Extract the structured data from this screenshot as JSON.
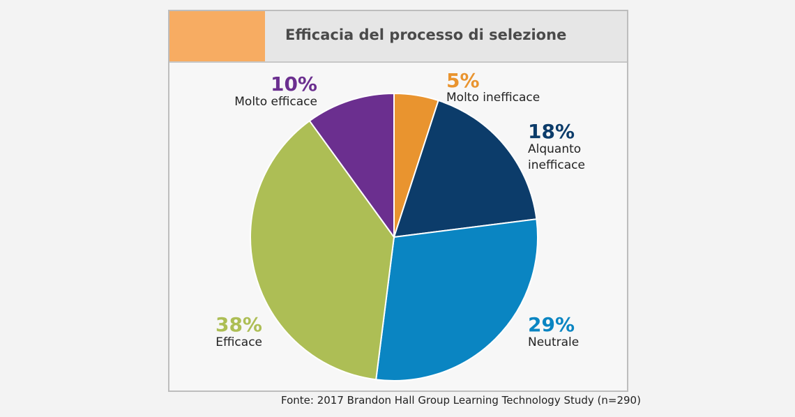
{
  "header": {
    "title": "Efficacia del processo di selezione",
    "accent_color": "#f7ac62"
  },
  "source": "Fonte: 2017 Brandon Hall Group Learning Technology Study (n=290)",
  "chart_data": {
    "type": "pie",
    "title": "Efficacia del processo di selezione",
    "slices": [
      {
        "label": "Molto inefficace",
        "value": 5,
        "value_label": "5%",
        "color": "#e9942f"
      },
      {
        "label": "Alquanto inefficace",
        "value": 18,
        "value_label": "18%",
        "color": "#0c3c6a"
      },
      {
        "label": "Neutrale",
        "value": 29,
        "value_label": "29%",
        "color": "#0a85c2"
      },
      {
        "label": "Efficace",
        "value": 38,
        "value_label": "38%",
        "color": "#adbe55"
      },
      {
        "label": "Molto efficace",
        "value": 10,
        "value_label": "10%",
        "color": "#6b2f8f"
      }
    ],
    "start_angle": "12 o'clock",
    "direction": "clockwise"
  }
}
